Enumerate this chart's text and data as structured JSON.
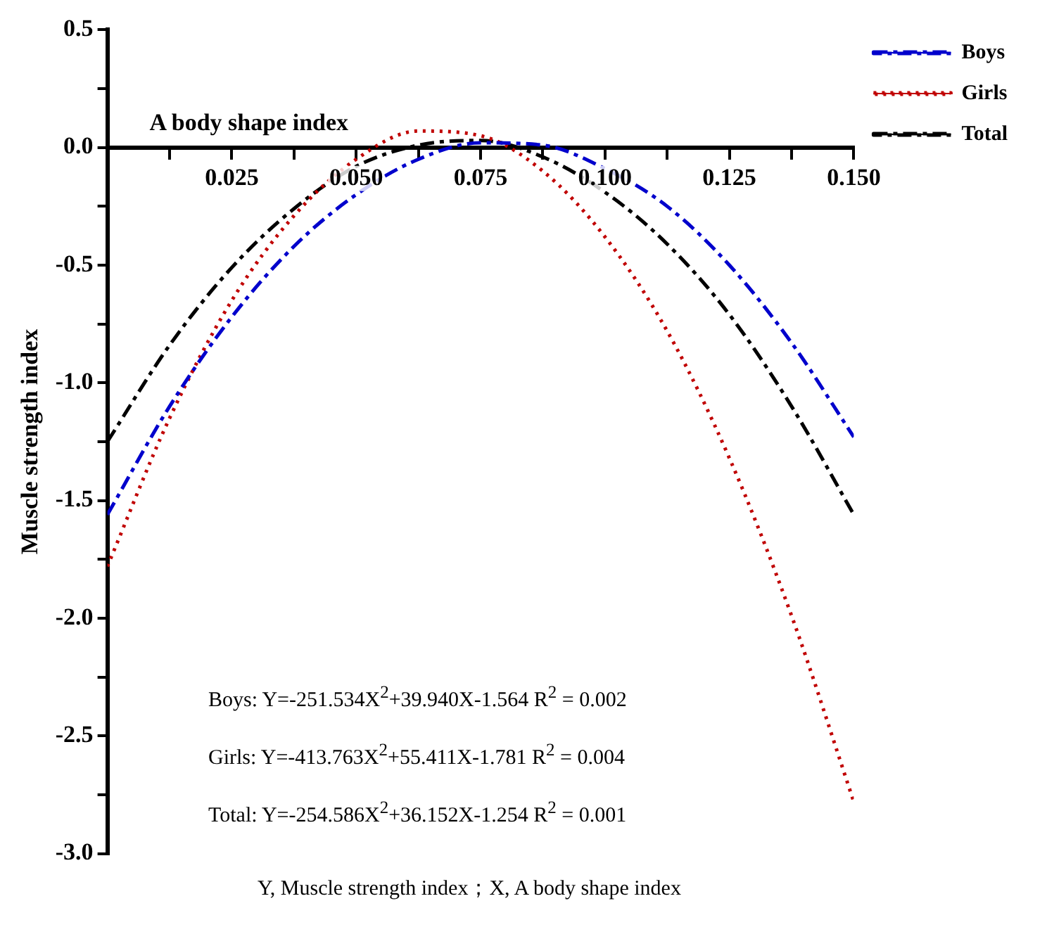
{
  "chart_data": {
    "type": "line",
    "xlabel": "A body shape index",
    "ylabel": "Muscle strength index",
    "x": [
      0,
      0.0125,
      0.025,
      0.0375,
      0.05,
      0.0625,
      0.075,
      0.0875,
      0.1,
      0.1125,
      0.125,
      0.1375,
      0.15
    ],
    "series": [
      {
        "name": "Boys",
        "color": "#0000cc",
        "line_style": "dashed",
        "values": [
          -1.56,
          -1.1,
          -0.72,
          -0.42,
          -0.2,
          -0.05,
          0.02,
          0.01,
          -0.09,
          -0.25,
          -0.5,
          -0.83,
          -1.23
        ]
      },
      {
        "name": "Girls",
        "color": "#c00000",
        "line_style": "dotted",
        "values": [
          -1.78,
          -1.15,
          -0.65,
          -0.29,
          -0.05,
          0.07,
          0.05,
          -0.1,
          -0.38,
          -0.78,
          -1.32,
          -1.99,
          -2.78
        ]
      },
      {
        "name": "Total",
        "color": "#000000",
        "line_style": "dashed",
        "values": [
          -1.25,
          -0.84,
          -0.51,
          -0.26,
          -0.08,
          0.01,
          0.03,
          -0.04,
          -0.19,
          -0.41,
          -0.71,
          -1.1,
          -1.56
        ]
      }
    ],
    "xlim": [
      0,
      0.15
    ],
    "xticks": [
      {
        "value": 0.0125,
        "label": null
      },
      {
        "value": 0.025,
        "label": "0.025"
      },
      {
        "value": 0.0375,
        "label": null
      },
      {
        "value": 0.05,
        "label": "0.050"
      },
      {
        "value": 0.0625,
        "label": null
      },
      {
        "value": 0.075,
        "label": "0.075"
      },
      {
        "value": 0.0875,
        "label": null
      },
      {
        "value": 0.1,
        "label": "0.100"
      },
      {
        "value": 0.1125,
        "label": null
      },
      {
        "value": 0.125,
        "label": "0.125"
      },
      {
        "value": 0.1375,
        "label": null
      },
      {
        "value": 0.15,
        "label": "0.150"
      }
    ],
    "ylim": [
      -3,
      0.5
    ],
    "yticks": [
      {
        "value": -3,
        "label": "-3.0"
      },
      {
        "value": -2.75,
        "label": null
      },
      {
        "value": -2.5,
        "label": "-2.5"
      },
      {
        "value": -2.25,
        "label": null
      },
      {
        "value": -2,
        "label": "-2.0"
      },
      {
        "value": -1.75,
        "label": null
      },
      {
        "value": -1.5,
        "label": "-1.5"
      },
      {
        "value": -1.25,
        "label": null
      },
      {
        "value": -1,
        "label": "-1.0"
      },
      {
        "value": -0.75,
        "label": null
      },
      {
        "value": -0.5,
        "label": "-0.5"
      },
      {
        "value": -0.25,
        "label": null
      },
      {
        "value": 0,
        "label": "0.0"
      },
      {
        "value": 0.25,
        "label": null
      },
      {
        "value": 0.5,
        "label": "0.5"
      }
    ],
    "grid": false,
    "legend": "top right",
    "marker": "none",
    "annotations": [
      "Boys: Y=-251.534X$^{2}$+39.940X-1.564  R$^{2}$ = 0.002",
      "Girls: Y=-413.763X$^{2}$+55.411X-1.781  R$^{2}$ = 0.004",
      "Total: Y=-254.586X$^{2}$+36.152X-1.254  R$^{2}$ = 0.001",
      "Y, Muscle strength index；X, A body shape index"
    ]
  }
}
